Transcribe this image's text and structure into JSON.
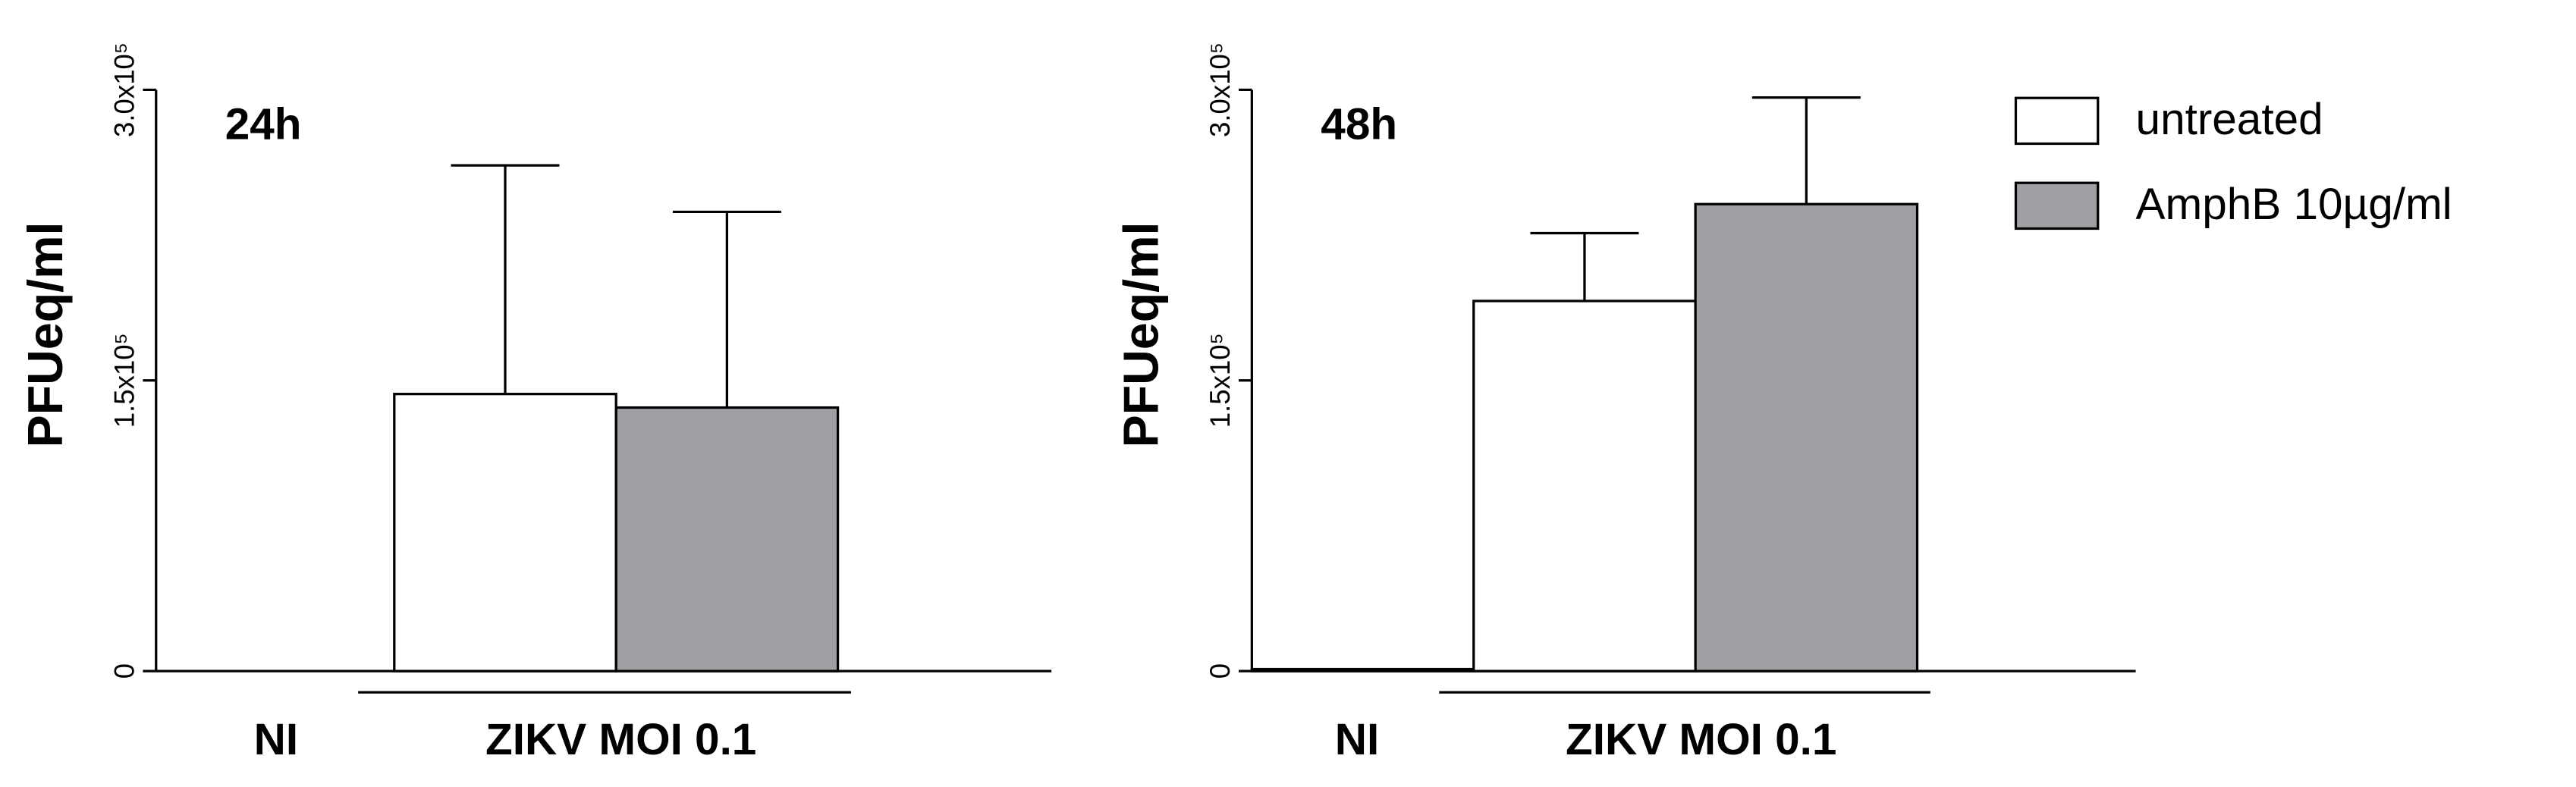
{
  "chart_data": [
    {
      "type": "bar",
      "annotation": "24h",
      "y_label": "PFUeq/ml",
      "categories": [
        "NI",
        "ZIKV MOI 0.1"
      ],
      "series": [
        {
          "color": "#ffffff",
          "values": [
            0,
            143000
          ],
          "errors": [
            null,
            118000
          ]
        },
        {
          "color": "#a0a0a4",
          "values": [
            null,
            136000
          ],
          "errors": [
            null,
            101000
          ]
        }
      ],
      "ylim": [
        0,
        300000
      ],
      "yticks": [
        0,
        {
          "value": 150000,
          "label": "1.5x10⁵"
        },
        {
          "value": 300000,
          "label": "3.0x10⁵"
        }
      ]
    },
    {
      "type": "bar",
      "annotation": "48h",
      "y_label": "PFUeq/ml",
      "categories": [
        "NI",
        "ZIKV MOI 0.1"
      ],
      "series": [
        {
          "name": "untreated",
          "color": "#ffffff",
          "values": [
            1000,
            191000
          ],
          "errors": [
            null,
            35000
          ]
        },
        {
          "name": "AmphB 10µg/ml",
          "color": "#a0a0a4",
          "values": [
            null,
            241000
          ],
          "errors": [
            null,
            55000
          ]
        }
      ],
      "ylim": [
        0,
        300000
      ],
      "yticks": [
        0,
        {
          "value": 150000,
          "label": "1.5x10⁵"
        },
        {
          "value": 300000,
          "label": "3.0x10⁵"
        }
      ],
      "legend": "right"
    }
  ]
}
